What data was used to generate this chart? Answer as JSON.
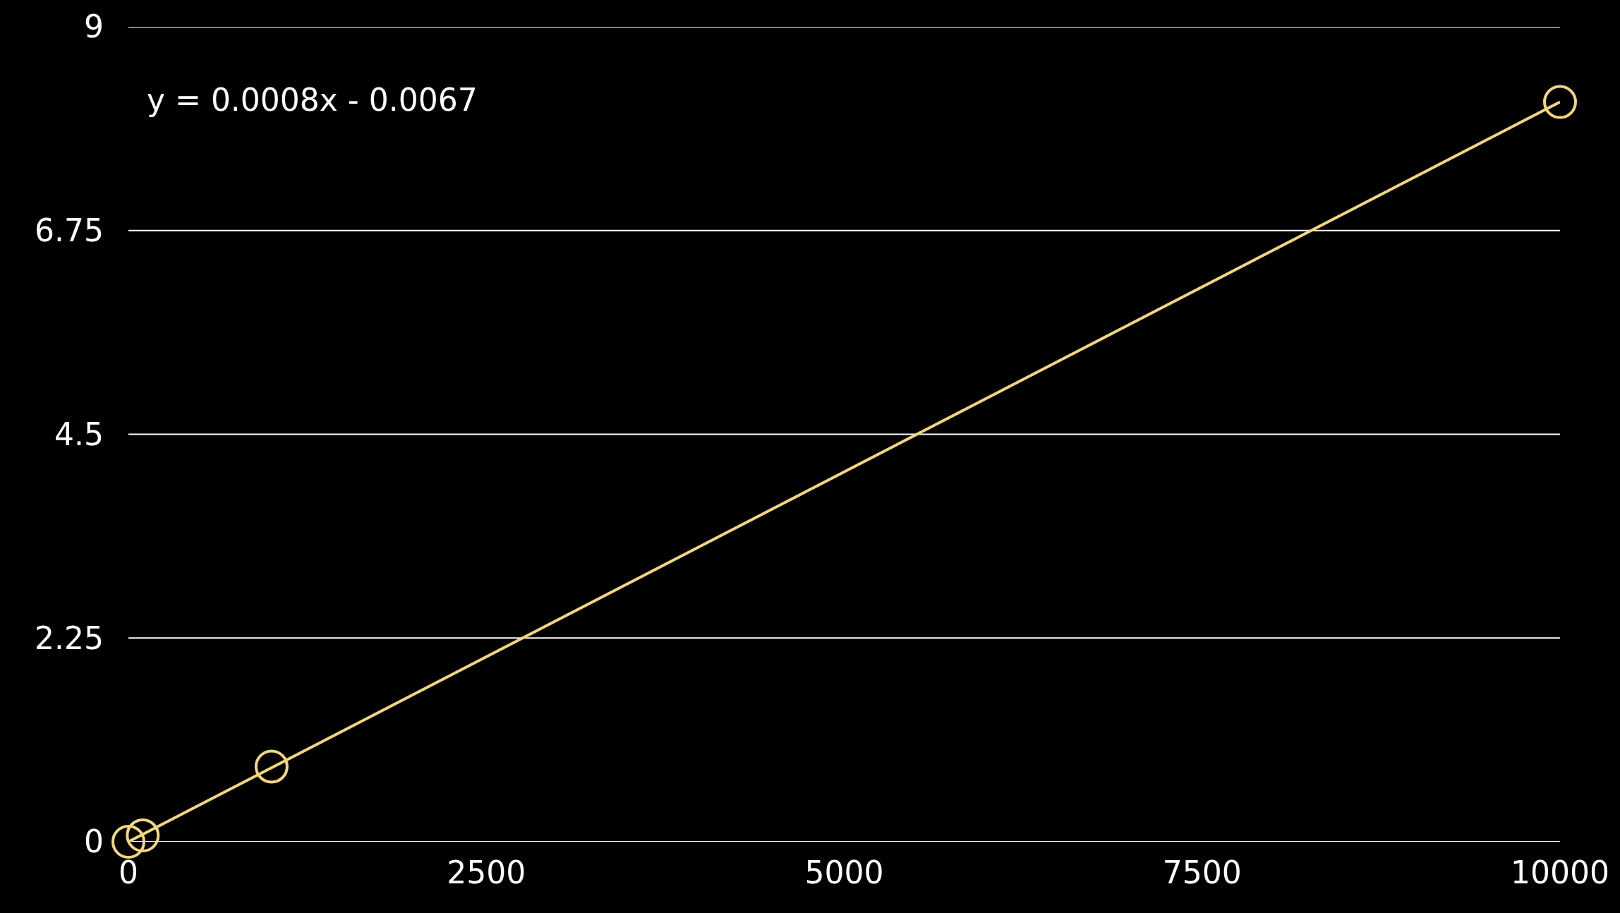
{
  "chart_data": {
    "type": "scatter",
    "x": [
      0,
      100,
      1000,
      10000
    ],
    "series": [
      {
        "type": "scatter",
        "color": "#f2d57e",
        "values": [
          0,
          0.07,
          0.83,
          8.17
        ],
        "marker": "circle"
      },
      {
        "type": "line",
        "color": "#f2d57e",
        "x": [
          0,
          10000
        ],
        "values": [
          0,
          8.17
        ],
        "marker": "none",
        "line_style": "solid"
      }
    ],
    "xlim": [
      0,
      10000
    ],
    "xticks": [
      0,
      2500,
      5000,
      7500,
      10000
    ],
    "ylim": [
      0,
      9
    ],
    "yticks": [
      0,
      2.25,
      4.5,
      6.75,
      9
    ],
    "grid": "y",
    "annotations": [
      "y = 0.0008x - 0.0067"
    ]
  }
}
